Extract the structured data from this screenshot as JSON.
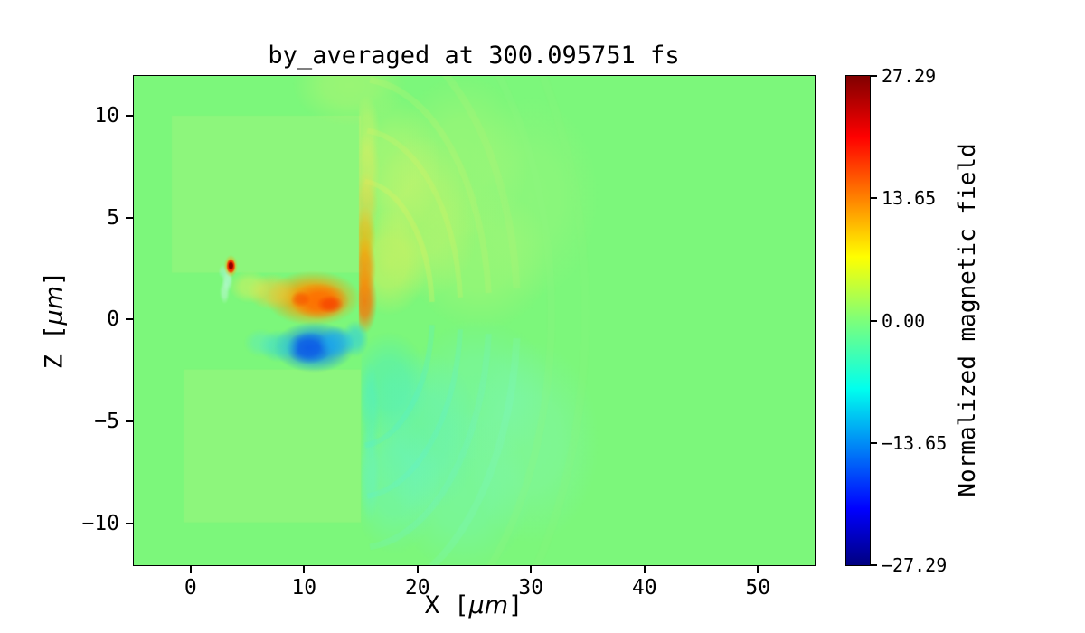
{
  "chart_data": {
    "type": "heatmap",
    "title": "by_averaged at 300.095751 fs",
    "xlabel": "X [μm]",
    "ylabel": "Z [μm]",
    "xlabel_parts": {
      "prefix": "X [",
      "math": "μm",
      "suffix": "]"
    },
    "ylabel_parts": {
      "prefix": "Z [",
      "math": "μm",
      "suffix": "]"
    },
    "xlim": [
      -5,
      55
    ],
    "ylim": [
      -12.05,
      11.95
    ],
    "grid": false,
    "legend": false,
    "xticks": {
      "values": [
        0,
        10,
        20,
        30,
        40,
        50
      ],
      "labels": [
        "0",
        "10",
        "20",
        "30",
        "40",
        "50"
      ]
    },
    "yticks": {
      "values": [
        -10,
        -5,
        0,
        5,
        10
      ],
      "labels": [
        "−10",
        "−5",
        "0",
        "5",
        "10"
      ]
    },
    "colorbar": {
      "label": "Normalized magnetic field",
      "vmin": -27.29,
      "vmax": 27.29,
      "tick_values": [
        27.29,
        13.65,
        0,
        -13.65,
        -27.29
      ],
      "tick_labels": [
        "27.29",
        "13.65",
        "0.00",
        "−13.65",
        "−27.29"
      ]
    },
    "colormap": {
      "name": "jet",
      "stops": [
        [
          0,
          "#000080"
        ],
        [
          0.115,
          "#0000ff"
        ],
        [
          0.36,
          "#00ffee"
        ],
        [
          0.5,
          "#7dff7a"
        ],
        [
          0.63,
          "#ffff00"
        ],
        [
          0.875,
          "#ff0000"
        ],
        [
          1,
          "#800000"
        ]
      ]
    },
    "background_value_color": "#7cf77b",
    "features": [
      {
        "kind": "rect",
        "x0": -1.65,
        "x1": 15.0,
        "z0": 2.3,
        "z1": 10.0,
        "color": "#8df67c",
        "alpha": 1
      },
      {
        "kind": "rect",
        "x0": -0.6,
        "x1": 15.0,
        "z0": -9.95,
        "z1": -2.45,
        "color": "#8df67c",
        "alpha": 1
      },
      {
        "kind": "blob",
        "cx": 17.5,
        "cz": 2.8,
        "rx": 3.5,
        "rz": 2.6,
        "color": "#e9ee55",
        "alpha": 0.5,
        "clipx0": 15.05
      },
      {
        "kind": "blob",
        "cx": 20.5,
        "cz": 5.0,
        "rx": 5.0,
        "rz": 4.0,
        "color": "#d8f263",
        "alpha": 0.45,
        "clipx0": 15.05
      },
      {
        "kind": "blob",
        "cx": 18.0,
        "cz": 7.5,
        "rx": 4.0,
        "rz": 3.5,
        "color": "#dcf46a",
        "alpha": 0.4,
        "clipx0": 15.05
      },
      {
        "kind": "blob",
        "cx": 24.0,
        "cz": 8.0,
        "rx": 6.0,
        "rz": 4.0,
        "color": "#c9f472",
        "alpha": 0.32,
        "clipx0": 15.05
      },
      {
        "kind": "blob",
        "cx": 25.5,
        "cz": 3.0,
        "rx": 6.5,
        "rz": 3.5,
        "color": "#cdf46e",
        "alpha": 0.3,
        "clipx0": 15.05
      },
      {
        "kind": "blob",
        "cx": 30.0,
        "cz": 6.0,
        "rx": 6.0,
        "rz": 5.0,
        "color": "#b2f67c",
        "alpha": 0.28,
        "clipx0": 15.05
      },
      {
        "kind": "blob",
        "cx": 17.5,
        "cz": -3.2,
        "rx": 3.5,
        "rz": 2.6,
        "color": "#3fecd1",
        "alpha": 0.45,
        "clipx0": 15.05
      },
      {
        "kind": "blob",
        "cx": 20.5,
        "cz": -5.5,
        "rx": 5.0,
        "rz": 4.0,
        "color": "#58f1cf",
        "alpha": 0.4,
        "clipx0": 15.05
      },
      {
        "kind": "blob",
        "cx": 18.0,
        "cz": -8.0,
        "rx": 4.0,
        "rz": 3.5,
        "color": "#66f3d5",
        "alpha": 0.38,
        "clipx0": 15.05
      },
      {
        "kind": "blob",
        "cx": 24.0,
        "cz": -8.5,
        "rx": 6.0,
        "rz": 4.0,
        "color": "#72f4da",
        "alpha": 0.3,
        "clipx0": 15.05
      },
      {
        "kind": "blob",
        "cx": 25.5,
        "cz": -3.5,
        "rx": 6.5,
        "rz": 3.5,
        "color": "#70f3d8",
        "alpha": 0.28,
        "clipx0": 15.05
      },
      {
        "kind": "blob",
        "cx": 30.0,
        "cz": -6.0,
        "rx": 6.0,
        "rz": 5.0,
        "color": "#86f6e0",
        "alpha": 0.25,
        "clipx0": 15.05
      },
      {
        "kind": "blob",
        "cx": 15.8,
        "cz": -4.5,
        "rx": 0.9,
        "rz": 2.5,
        "color": "#4aeed4",
        "alpha": 0.4,
        "clipx0": 15.05
      },
      {
        "kind": "blob",
        "cx": 15.8,
        "cz": -7.5,
        "rx": 0.9,
        "rz": 2.5,
        "color": "#5ef1d8",
        "alpha": 0.35,
        "clipx0": 15.05
      },
      {
        "kind": "arc",
        "cx": 14.8,
        "cz": 0.3,
        "r": 6.5,
        "a0": -85,
        "a1": -5,
        "color": "#e6ef60",
        "alpha": 0.28,
        "lw": 6,
        "clipx0": 15.2
      },
      {
        "kind": "arc",
        "cx": 14.8,
        "cz": 0.3,
        "r": 9,
        "a0": -85,
        "a1": -5,
        "color": "#dff166",
        "alpha": 0.24,
        "lw": 6,
        "clipx0": 15.2
      },
      {
        "kind": "arc",
        "cx": 14.8,
        "cz": 0.3,
        "r": 11.5,
        "a0": -85,
        "a1": -5,
        "color": "#d4f36c",
        "alpha": 0.2,
        "lw": 7,
        "clipx0": 15.2
      },
      {
        "kind": "arc",
        "cx": 14.8,
        "cz": 0.3,
        "r": 14,
        "a0": -85,
        "a1": -5,
        "color": "#c4f476",
        "alpha": 0.16,
        "lw": 8,
        "clipx0": 15.2
      },
      {
        "kind": "arc",
        "cx": 14.8,
        "cz": 0.3,
        "r": 6.5,
        "a0": 5,
        "a1": 85,
        "color": "#52efd2",
        "alpha": 0.25,
        "lw": 6,
        "clipx0": 15.2
      },
      {
        "kind": "arc",
        "cx": 14.8,
        "cz": 0.3,
        "r": 9,
        "a0": 5,
        "a1": 85,
        "color": "#60f1d6",
        "alpha": 0.22,
        "lw": 6,
        "clipx0": 15.2
      },
      {
        "kind": "arc",
        "cx": 14.8,
        "cz": 0.3,
        "r": 11.5,
        "a0": 5,
        "a1": 85,
        "color": "#6ef3da",
        "alpha": 0.18,
        "lw": 7,
        "clipx0": 15.2
      },
      {
        "kind": "arc",
        "cx": 14.8,
        "cz": 0.3,
        "r": 14,
        "a0": 5,
        "a1": 85,
        "color": "#80f5de",
        "alpha": 0.15,
        "lw": 8,
        "clipx0": 15.2
      },
      {
        "kind": "arc",
        "cx": 14.8,
        "cz": 0.3,
        "r": 17,
        "a0": -75,
        "a1": 75,
        "color": "#93f77e",
        "alpha": 0.22,
        "lw": 8,
        "clipx0": 15.2
      },
      {
        "kind": "arc",
        "cx": 14.8,
        "cz": 0.3,
        "r": 20,
        "a0": -70,
        "a1": 70,
        "color": "#8bf77d",
        "alpha": 0.2,
        "lw": 9,
        "clipx0": 15.2
      },
      {
        "kind": "blob",
        "cx": 15.35,
        "cz": 0.9,
        "rx": 1.1,
        "rz": 1.6,
        "color": "#ff7000",
        "alpha": 0.85,
        "clipx0": 14.85
      },
      {
        "kind": "blob",
        "cx": 15.35,
        "cz": 2.5,
        "rx": 1.0,
        "rz": 1.6,
        "color": "#ff8a00",
        "alpha": 0.8,
        "clipx0": 14.85
      },
      {
        "kind": "blob",
        "cx": 15.35,
        "cz": 4.1,
        "rx": 1.0,
        "rz": 1.5,
        "color": "#ffab00",
        "alpha": 0.65,
        "clipx0": 14.85
      },
      {
        "kind": "blob",
        "cx": 15.45,
        "cz": 5.7,
        "rx": 1.1,
        "rz": 1.6,
        "color": "#f3cf3e",
        "alpha": 0.55,
        "clipx0": 14.85
      },
      {
        "kind": "blob",
        "cx": 15.5,
        "cz": 7.4,
        "rx": 1.2,
        "rz": 1.8,
        "color": "#e6e95a",
        "alpha": 0.5,
        "clipx0": 14.85
      },
      {
        "kind": "blob",
        "cx": 15.5,
        "cz": 9.2,
        "rx": 1.2,
        "rz": 1.8,
        "color": "#ddf164",
        "alpha": 0.45,
        "clipx0": 14.85
      },
      {
        "kind": "blob",
        "cx": 14.0,
        "cz": 11.5,
        "rx": 5.0,
        "rz": 2.0,
        "color": "#dff268",
        "alpha": 0.3
      },
      {
        "kind": "blob",
        "cx": 10.8,
        "cz": 1.05,
        "rx": 4.2,
        "rz": 1.35,
        "color": "#ff9800",
        "alpha": 0.95
      },
      {
        "kind": "blob",
        "cx": 11.4,
        "cz": 0.9,
        "rx": 2.6,
        "rz": 0.9,
        "color": "#ff6a00",
        "alpha": 0.9
      },
      {
        "kind": "blob",
        "cx": 12.3,
        "cz": 0.75,
        "rx": 1.2,
        "rz": 0.45,
        "color": "#f63e00",
        "alpha": 0.75
      },
      {
        "kind": "blob",
        "cx": 9.7,
        "cz": 1.0,
        "rx": 0.9,
        "rz": 0.4,
        "color": "#f84d00",
        "alpha": 0.6
      },
      {
        "kind": "blob",
        "cx": 7.2,
        "cz": 1.35,
        "rx": 2.2,
        "rz": 0.9,
        "color": "#ffc832",
        "alpha": 0.55
      },
      {
        "kind": "blob",
        "cx": 5.2,
        "cz": 1.6,
        "rx": 1.8,
        "rz": 0.8,
        "color": "#e4ee58",
        "alpha": 0.5
      },
      {
        "kind": "blob",
        "cx": 10.9,
        "cz": -1.35,
        "rx": 3.6,
        "rz": 1.25,
        "color": "#0d87f0",
        "alpha": 0.9
      },
      {
        "kind": "blob",
        "cx": 10.4,
        "cz": -1.4,
        "rx": 2.0,
        "rz": 0.8,
        "color": "#0b53e8",
        "alpha": 0.85
      },
      {
        "kind": "blob",
        "cx": 12.9,
        "cz": -1.1,
        "rx": 1.6,
        "rz": 0.8,
        "color": "#1aaaf2",
        "alpha": 0.7
      },
      {
        "kind": "blob",
        "cx": 14.5,
        "cz": -0.95,
        "rx": 1.2,
        "rz": 0.9,
        "color": "#27c9e8",
        "alpha": 0.6
      },
      {
        "kind": "blob",
        "cx": 7.8,
        "cz": -1.3,
        "rx": 1.8,
        "rz": 0.8,
        "color": "#30d3d8",
        "alpha": 0.55
      },
      {
        "kind": "blob",
        "cx": 6.2,
        "cz": -1.15,
        "rx": 1.5,
        "rz": 0.7,
        "color": "#55e9c9",
        "alpha": 0.45
      },
      {
        "kind": "blob",
        "cx": 3.25,
        "cz": 1.95,
        "rx": 0.5,
        "rz": 0.6,
        "color": "#b5f9d6",
        "alpha": 0.75
      },
      {
        "kind": "blob",
        "cx": 3.0,
        "cz": 1.35,
        "rx": 0.45,
        "rz": 0.6,
        "color": "#c3fade",
        "alpha": 0.55
      },
      {
        "kind": "blob",
        "cx": 2.85,
        "cz": 2.35,
        "rx": 0.4,
        "rz": 0.35,
        "color": "#9df7cc",
        "alpha": 0.55
      },
      {
        "kind": "blob",
        "cx": 3.55,
        "cz": 2.62,
        "rx": 0.6,
        "rz": 0.55,
        "color": "#ffa000",
        "alpha": 0.8
      },
      {
        "kind": "blob",
        "cx": 3.55,
        "cz": 2.62,
        "rx": 0.4,
        "rz": 0.36,
        "color": "#f62c00",
        "alpha": 0.95,
        "profile": "hard"
      },
      {
        "kind": "blob",
        "cx": 3.55,
        "cz": 2.64,
        "rx": 0.24,
        "rz": 0.21,
        "color": "#8f0000",
        "alpha": 1,
        "profile": "hard"
      }
    ]
  }
}
